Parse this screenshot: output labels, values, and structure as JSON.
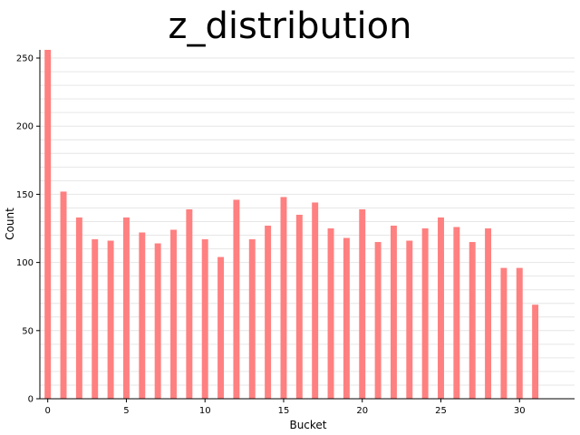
{
  "chart_data": {
    "type": "bar",
    "title": "z_distribution",
    "xlabel": "Bucket",
    "ylabel": "Count",
    "x": [
      0,
      1,
      2,
      3,
      4,
      5,
      6,
      7,
      8,
      9,
      10,
      11,
      12,
      13,
      14,
      15,
      16,
      17,
      18,
      19,
      20,
      21,
      22,
      23,
      24,
      25,
      26,
      27,
      28,
      29,
      30,
      31
    ],
    "values": [
      256,
      152,
      133,
      117,
      116,
      133,
      122,
      114,
      124,
      139,
      117,
      104,
      146,
      117,
      127,
      148,
      135,
      144,
      125,
      118,
      139,
      115,
      127,
      116,
      125,
      133,
      126,
      115,
      125,
      96,
      96,
      69
    ],
    "xticks": [
      0,
      5,
      10,
      15,
      20,
      25,
      30
    ],
    "yticks": [
      0,
      50,
      100,
      150,
      200,
      250
    ],
    "xlim": [
      -0.5,
      33.5
    ],
    "ylim": [
      0,
      256
    ],
    "grid": "horizontal",
    "bar_color": "#ff8080",
    "grid_color": "#e6e6e6"
  }
}
